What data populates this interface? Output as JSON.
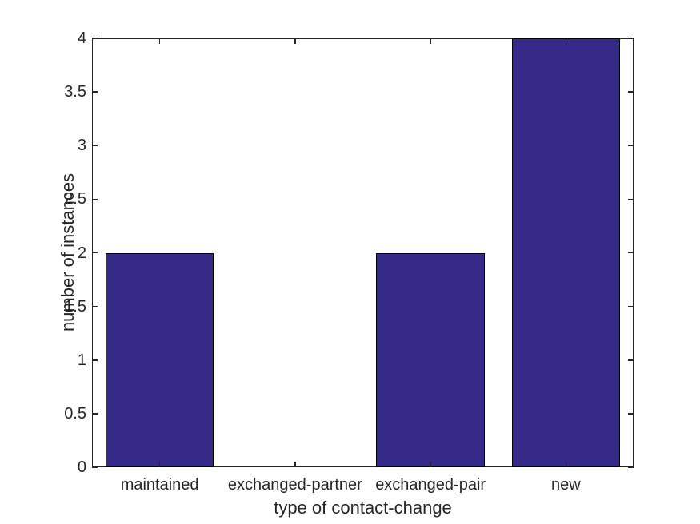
{
  "chart_data": {
    "type": "bar",
    "title": "",
    "categories": [
      "maintained",
      "exchanged-partner",
      "exchanged-pair",
      "new"
    ],
    "values": [
      2,
      0,
      2,
      4
    ],
    "xlabel": "type of contact-change",
    "ylabel": "number of instances",
    "ylim": [
      0,
      4
    ],
    "yticks": [
      0,
      0.5,
      1,
      1.5,
      2,
      2.5,
      3,
      3.5,
      4
    ],
    "bar_width_fraction": 0.8,
    "grid": "off",
    "legend": "none",
    "tick_direction": "in",
    "colors": {
      "bar_fill": "#352A87",
      "bar_edge": "#000000",
      "axis": "#262626",
      "text": "#262626",
      "background": "#FFFFFF"
    }
  }
}
